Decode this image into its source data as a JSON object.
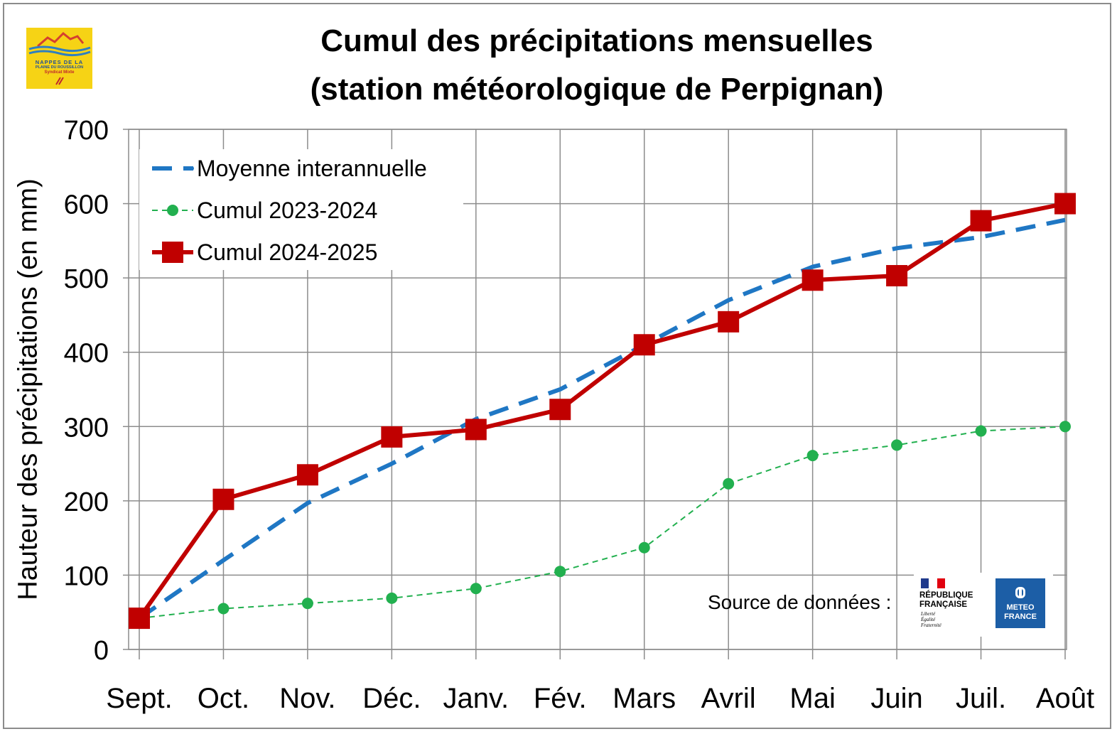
{
  "title": {
    "line1": "Cumul des précipitations mensuelles",
    "line2": "(station météorologique de Perpignan)"
  },
  "logo": {
    "line1": "NAPPES DE LA",
    "line2": "PLAINE DU ROUSSILLON",
    "line3": "Syndicat Mixte"
  },
  "source": {
    "label": "Source de données :",
    "republique": [
      "RÉPUBLIQUE",
      "FRANÇAISE"
    ],
    "motto": [
      "Liberté",
      "Égalité",
      "Fraternité"
    ],
    "meteo": [
      "METEO",
      "FRANCE"
    ]
  },
  "colors": {
    "moyenne": "#1f77c4",
    "cumul_2023": "#22b04f",
    "cumul_2024": "#c00000",
    "grid": "#8c8c8c"
  },
  "chart_data": {
    "type": "line",
    "title": "Cumul des précipitations mensuelles (station météorologique de Perpignan)",
    "xlabel": "",
    "ylabel": "Hauteur des précipitations (en mm)",
    "ylim": [
      0,
      700
    ],
    "yticks": [
      0,
      100,
      200,
      300,
      400,
      500,
      600,
      700
    ],
    "grid": true,
    "legend_position": "top-left",
    "categories": [
      "Sept.",
      "Oct.",
      "Nov.",
      "Déc.",
      "Janv.",
      "Fév.",
      "Mars",
      "Avril",
      "Mai",
      "Juin",
      "Juil.",
      "Août"
    ],
    "series": [
      {
        "name": "Moyenne interannuelle",
        "style": "dashed",
        "values": [
          42,
          120,
          197,
          250,
          310,
          350,
          410,
          470,
          515,
          540,
          555,
          578
        ]
      },
      {
        "name": "Cumul 2023-2024",
        "style": "dashed-circles",
        "values": [
          42,
          55,
          62,
          69,
          82,
          105,
          137,
          223,
          261,
          275,
          294,
          300
        ]
      },
      {
        "name": "Cumul 2024-2025",
        "style": "solid-squares",
        "values": [
          42,
          202,
          235,
          286,
          296,
          323,
          410,
          441,
          497,
          503,
          577,
          600
        ]
      }
    ]
  }
}
